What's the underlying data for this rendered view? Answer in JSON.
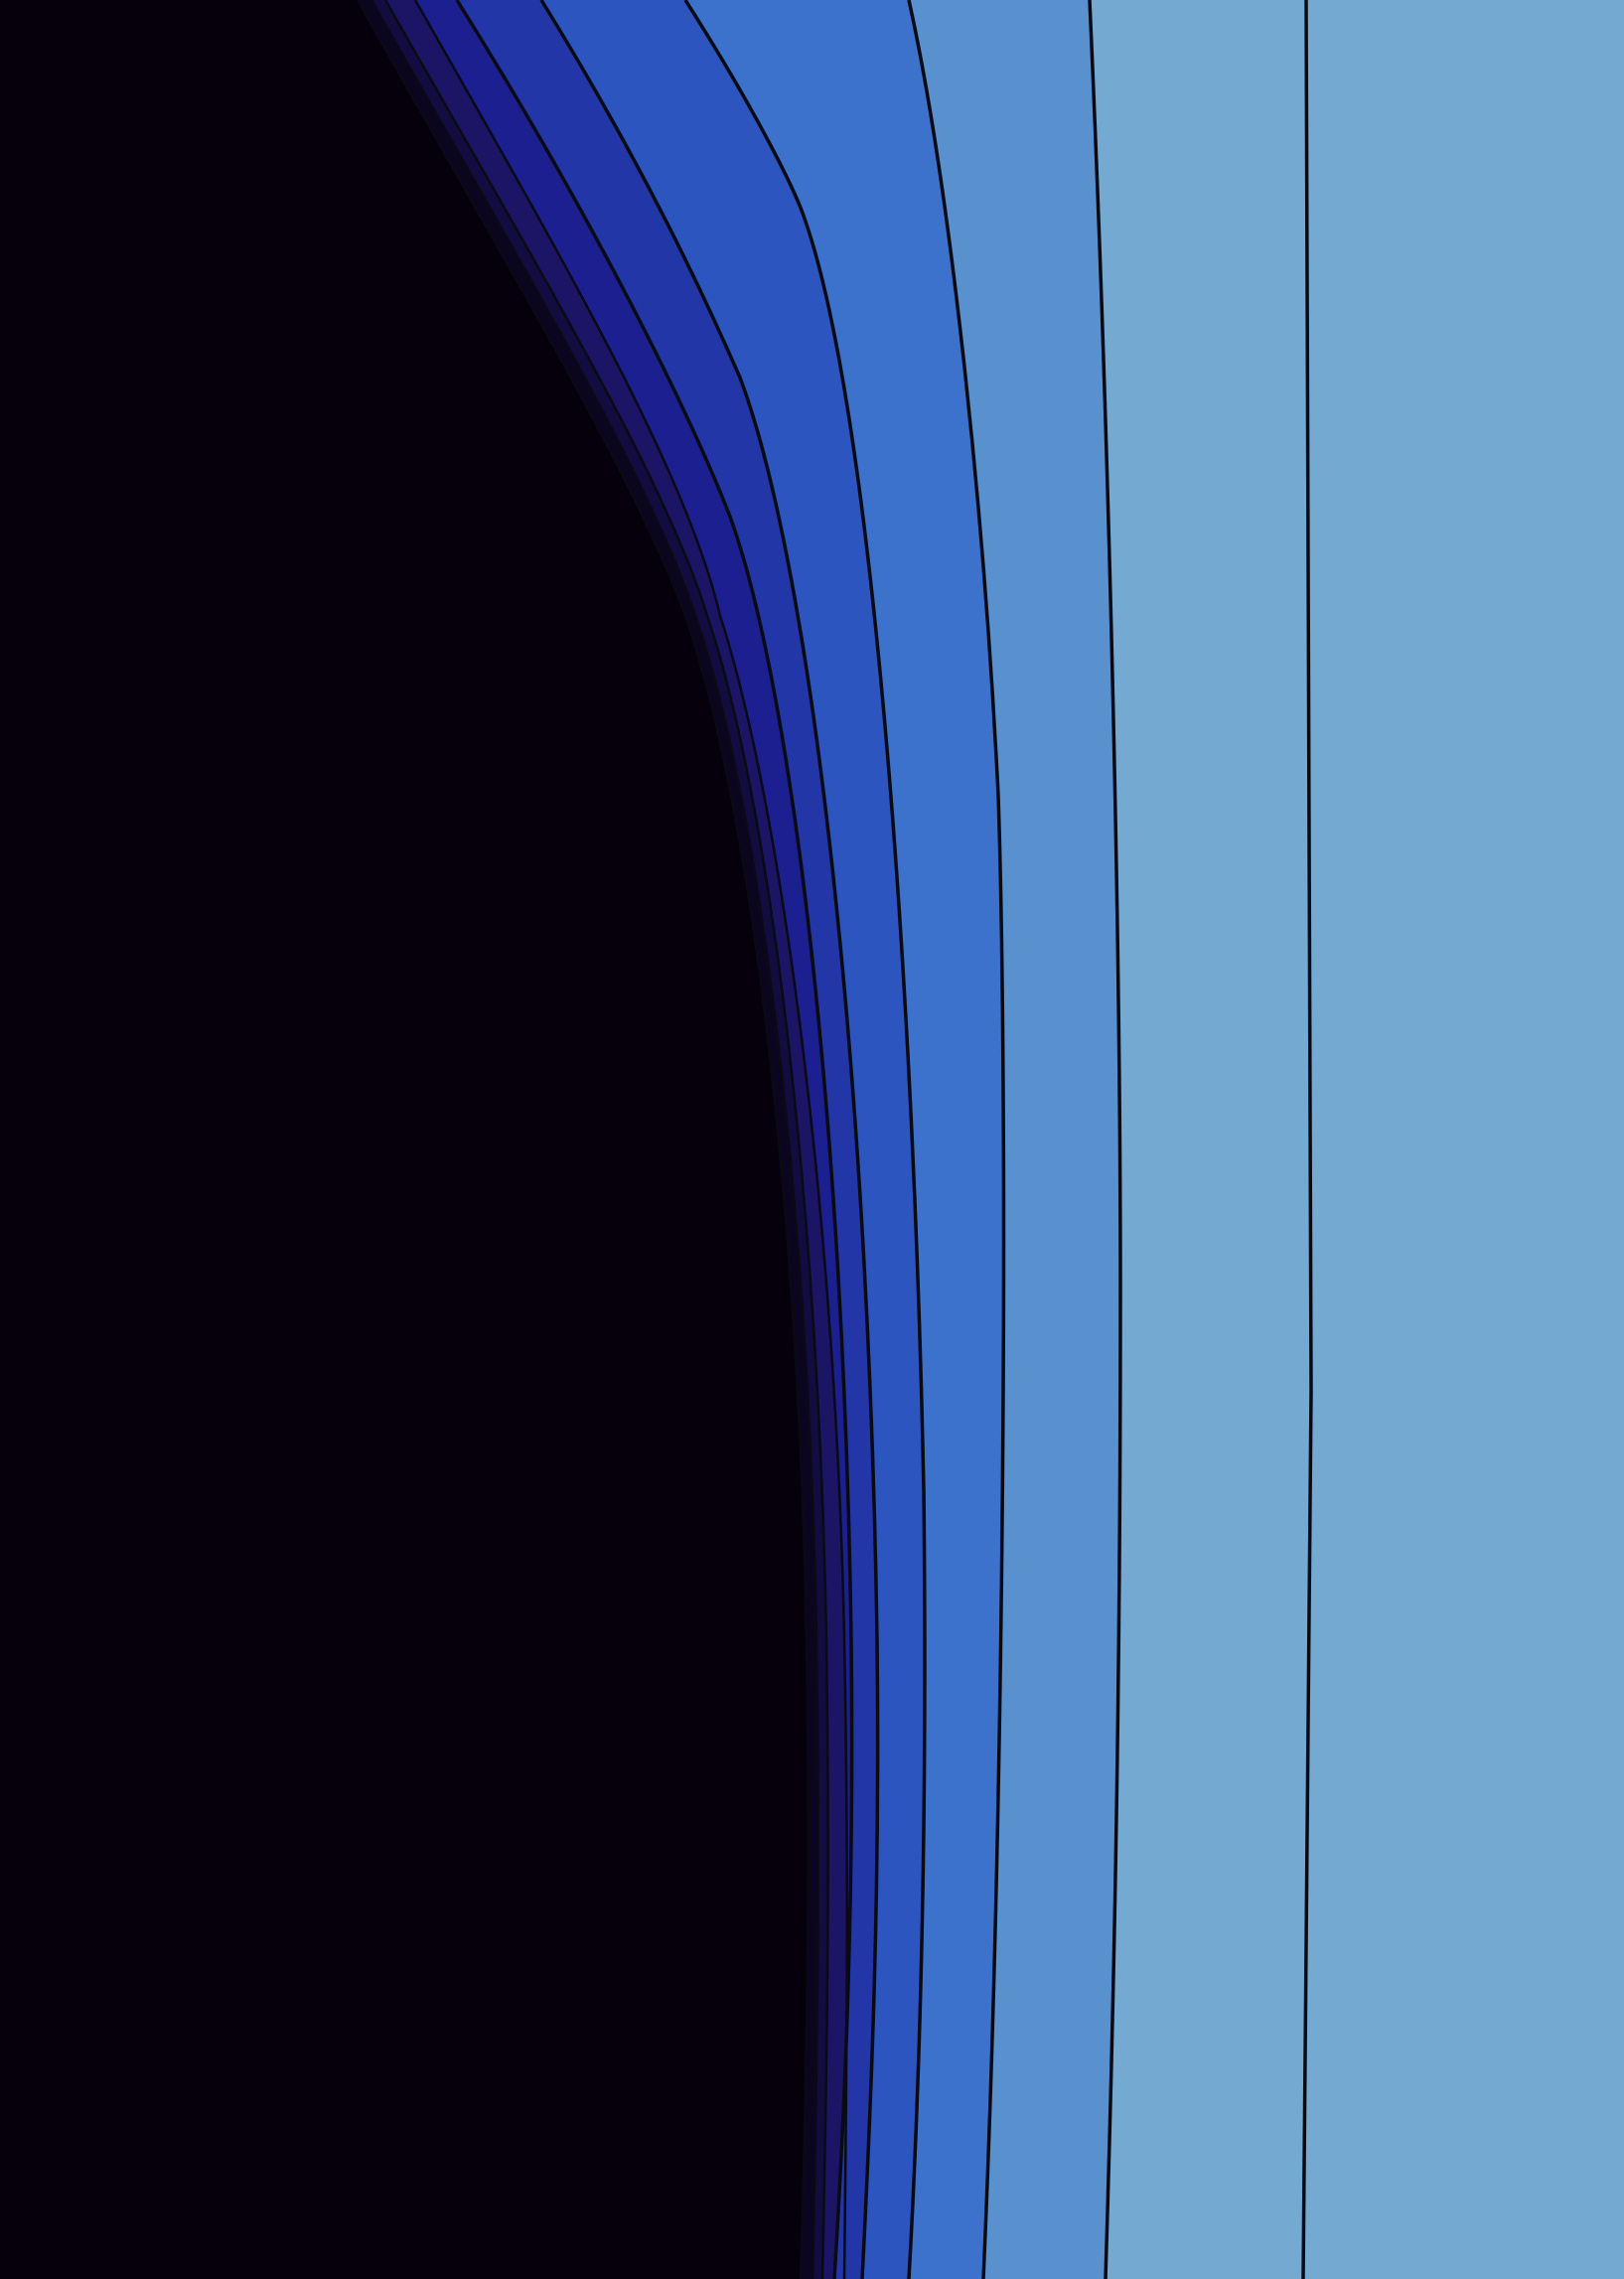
{
  "chart_data": {
    "type": "contour",
    "title": "",
    "xlabel": "",
    "ylabel": "",
    "colorbar": false,
    "axes_visible": false,
    "levels": [
      {
        "index": 0,
        "color": "#05000c"
      },
      {
        "index": 1,
        "color": "#0c0520"
      },
      {
        "index": 2,
        "color": "#130c40"
      },
      {
        "index": 3,
        "color": "#1c1565"
      },
      {
        "index": 4,
        "color": "#1c1f8f"
      },
      {
        "index": 5,
        "color": "#2236a8"
      },
      {
        "index": 6,
        "color": "#2d55bf"
      },
      {
        "index": 7,
        "color": "#3d72cc"
      },
      {
        "index": 8,
        "color": "#5990ce"
      },
      {
        "index": 9,
        "color": "#74a9d2"
      }
    ],
    "contour_line_color": "#0a0a14"
  }
}
